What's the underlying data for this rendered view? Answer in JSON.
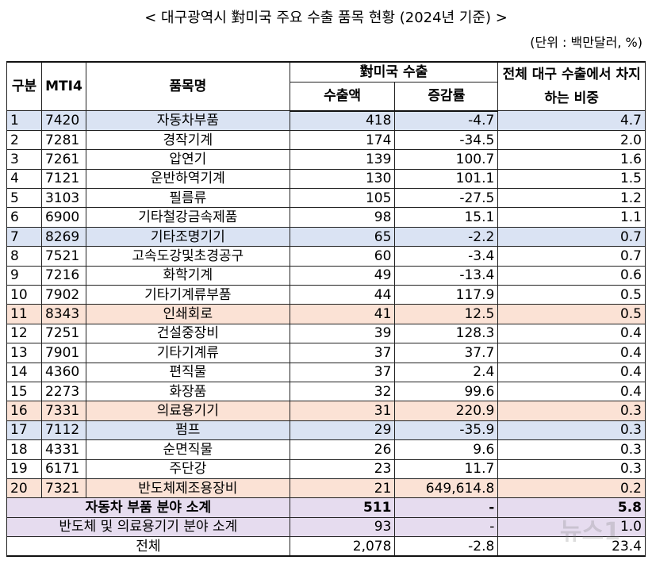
{
  "title": "< 대구광역시 對미국 주요 수출 품목 현황 (2024년 기준) >",
  "unit": "(단위 : 백만달러, %)",
  "table": {
    "header": {
      "no": "구분",
      "code": "MTI4",
      "item": "품목명",
      "group": "對미국 수출",
      "amount": "수출액",
      "change": "증감률",
      "share": "전체 대구 수출에서 차지하는 비중"
    },
    "rows": [
      {
        "cells": [
          "1",
          "7420",
          "자동차부품",
          "418",
          "-4.7",
          "4.7"
        ],
        "color": "#dae3f3"
      },
      {
        "cells": [
          "2",
          "7281",
          "경작기계",
          "174",
          "-34.5",
          "2.0"
        ]
      },
      {
        "cells": [
          "3",
          "7261",
          "압연기",
          "139",
          "100.7",
          "1.6"
        ]
      },
      {
        "cells": [
          "4",
          "7121",
          "운반하역기계",
          "130",
          "101.1",
          "1.5"
        ]
      },
      {
        "cells": [
          "5",
          "3103",
          "필름류",
          "105",
          "-27.5",
          "1.2"
        ]
      },
      {
        "cells": [
          "6",
          "6900",
          "기타철강금속제품",
          "98",
          "15.1",
          "1.1"
        ]
      },
      {
        "cells": [
          "7",
          "8269",
          "기타조명기기",
          "65",
          "-2.2",
          "0.7"
        ],
        "color": "#dae3f3"
      },
      {
        "cells": [
          "8",
          "7521",
          "고속도강및초경공구",
          "60",
          "-3.4",
          "0.7"
        ]
      },
      {
        "cells": [
          "9",
          "7216",
          "화학기계",
          "49",
          "-13.4",
          "0.6"
        ]
      },
      {
        "cells": [
          "10",
          "7902",
          "기타기계류부품",
          "44",
          "117.9",
          "0.5"
        ]
      },
      {
        "cells": [
          "11",
          "8343",
          "인쇄회로",
          "41",
          "12.5",
          "0.5"
        ],
        "color": "#fbe2d5"
      },
      {
        "cells": [
          "12",
          "7251",
          "건설중장비",
          "39",
          "128.3",
          "0.4"
        ]
      },
      {
        "cells": [
          "13",
          "7901",
          "기타기계류",
          "37",
          "37.7",
          "0.4"
        ]
      },
      {
        "cells": [
          "14",
          "4360",
          "편직물",
          "37",
          "2.4",
          "0.4"
        ]
      },
      {
        "cells": [
          "15",
          "2273",
          "화장품",
          "32",
          "99.6",
          "0.4"
        ]
      },
      {
        "cells": [
          "16",
          "7331",
          "의료용기기",
          "31",
          "220.9",
          "0.3"
        ],
        "color": "#fbe2d5"
      },
      {
        "cells": [
          "17",
          "7112",
          "펌프",
          "29",
          "-35.9",
          "0.3"
        ],
        "color": "#dae3f3"
      },
      {
        "cells": [
          "18",
          "4331",
          "순면직물",
          "26",
          "9.6",
          "0.3"
        ]
      },
      {
        "cells": [
          "19",
          "6171",
          "주단강",
          "23",
          "11.7",
          "0.3"
        ]
      },
      {
        "cells": [
          "20",
          "7321",
          "반도체제조용장비",
          "21",
          "649,614.8",
          "0.2"
        ],
        "color": "#fbe2d5"
      }
    ],
    "summary": [
      {
        "cells": [
          "자동차 부품 분야 소계",
          "511",
          "-",
          "5.8"
        ],
        "color": "#e6dcef",
        "bold": true
      },
      {
        "cells": [
          "반도체 및 의료용기기 분야 소계",
          "93",
          "-",
          "1.0"
        ],
        "color": "#e6dcef"
      },
      {
        "cells": [
          "전체",
          "2,078",
          "-2.8",
          "23.4"
        ]
      }
    ]
  },
  "watermark": "뉴스1"
}
